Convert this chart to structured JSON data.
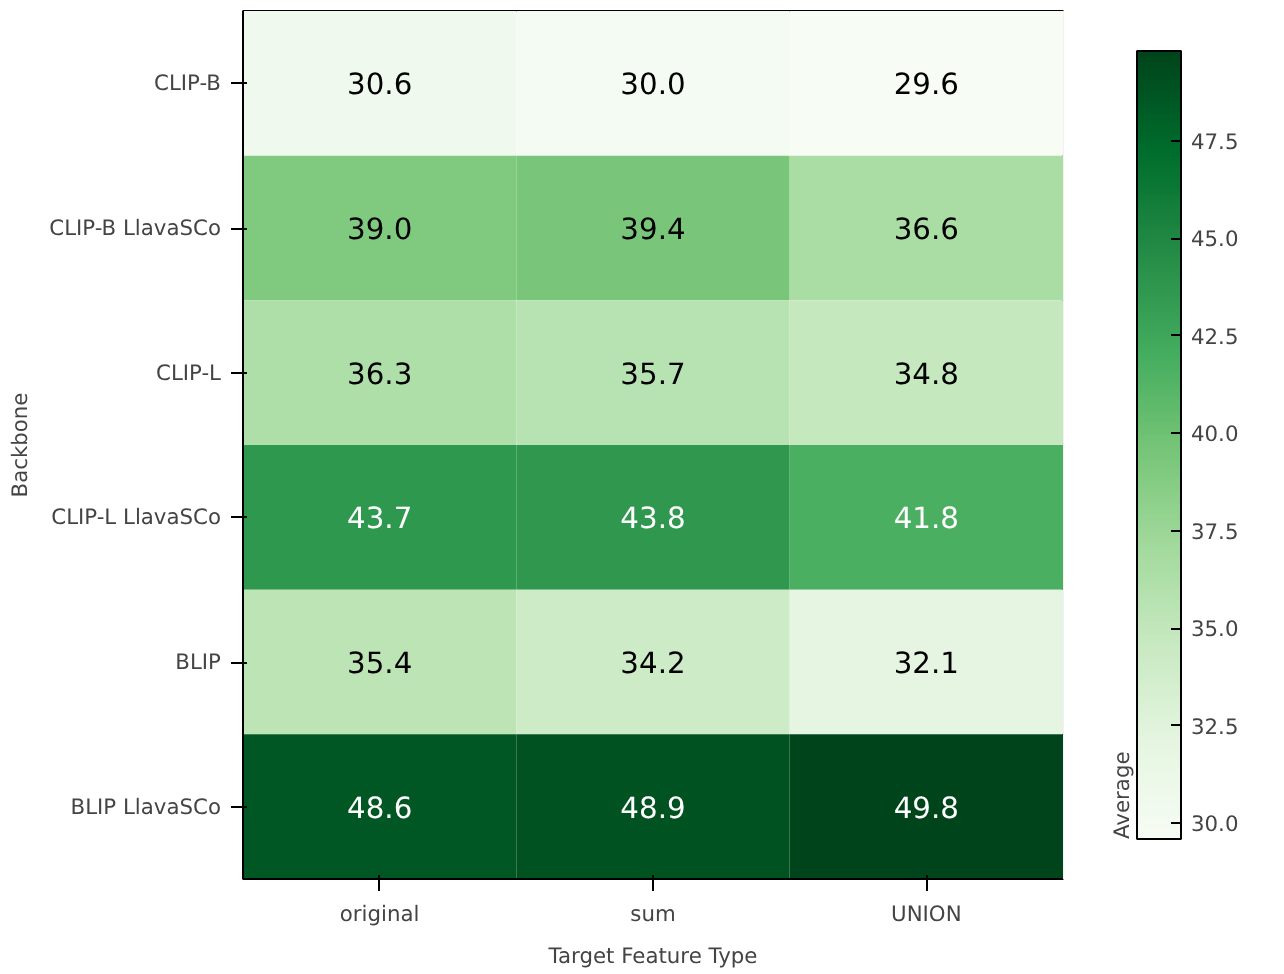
{
  "chart_data": {
    "type": "heatmap",
    "xlabel": "Target Feature Type",
    "ylabel": "Backbone",
    "clabel": "Average",
    "categories": [
      "original",
      "sum",
      "UNION"
    ],
    "y_categories": [
      "CLIP-B",
      "CLIP-B LlavaSCo",
      "CLIP-L",
      "CLIP-L LlavaSCo",
      "BLIP",
      "BLIP LlavaSCo"
    ],
    "cells": [
      [
        30.6,
        30.0,
        29.6
      ],
      [
        39.0,
        39.4,
        36.6
      ],
      [
        36.3,
        35.7,
        34.8
      ],
      [
        43.7,
        43.8,
        41.8
      ],
      [
        35.4,
        34.2,
        32.1
      ],
      [
        48.6,
        48.9,
        49.8
      ]
    ],
    "cell_labels": [
      [
        "30.6",
        "30.0",
        "29.6"
      ],
      [
        "39.0",
        "39.4",
        "36.6"
      ],
      [
        "36.3",
        "35.7",
        "34.8"
      ],
      [
        "43.7",
        "43.8",
        "41.8"
      ],
      [
        "35.4",
        "34.2",
        "32.1"
      ],
      [
        "48.6",
        "48.9",
        "49.8"
      ]
    ],
    "clim": [
      29.6,
      49.8
    ],
    "cticks": [
      {
        "value": 30,
        "label": "30.0"
      },
      32.5,
      {
        "value": 35,
        "label": "35.0"
      },
      37.5,
      {
        "value": 40,
        "label": "40.0"
      },
      42.5,
      {
        "value": 45,
        "label": "45.0"
      },
      47.5
    ]
  }
}
